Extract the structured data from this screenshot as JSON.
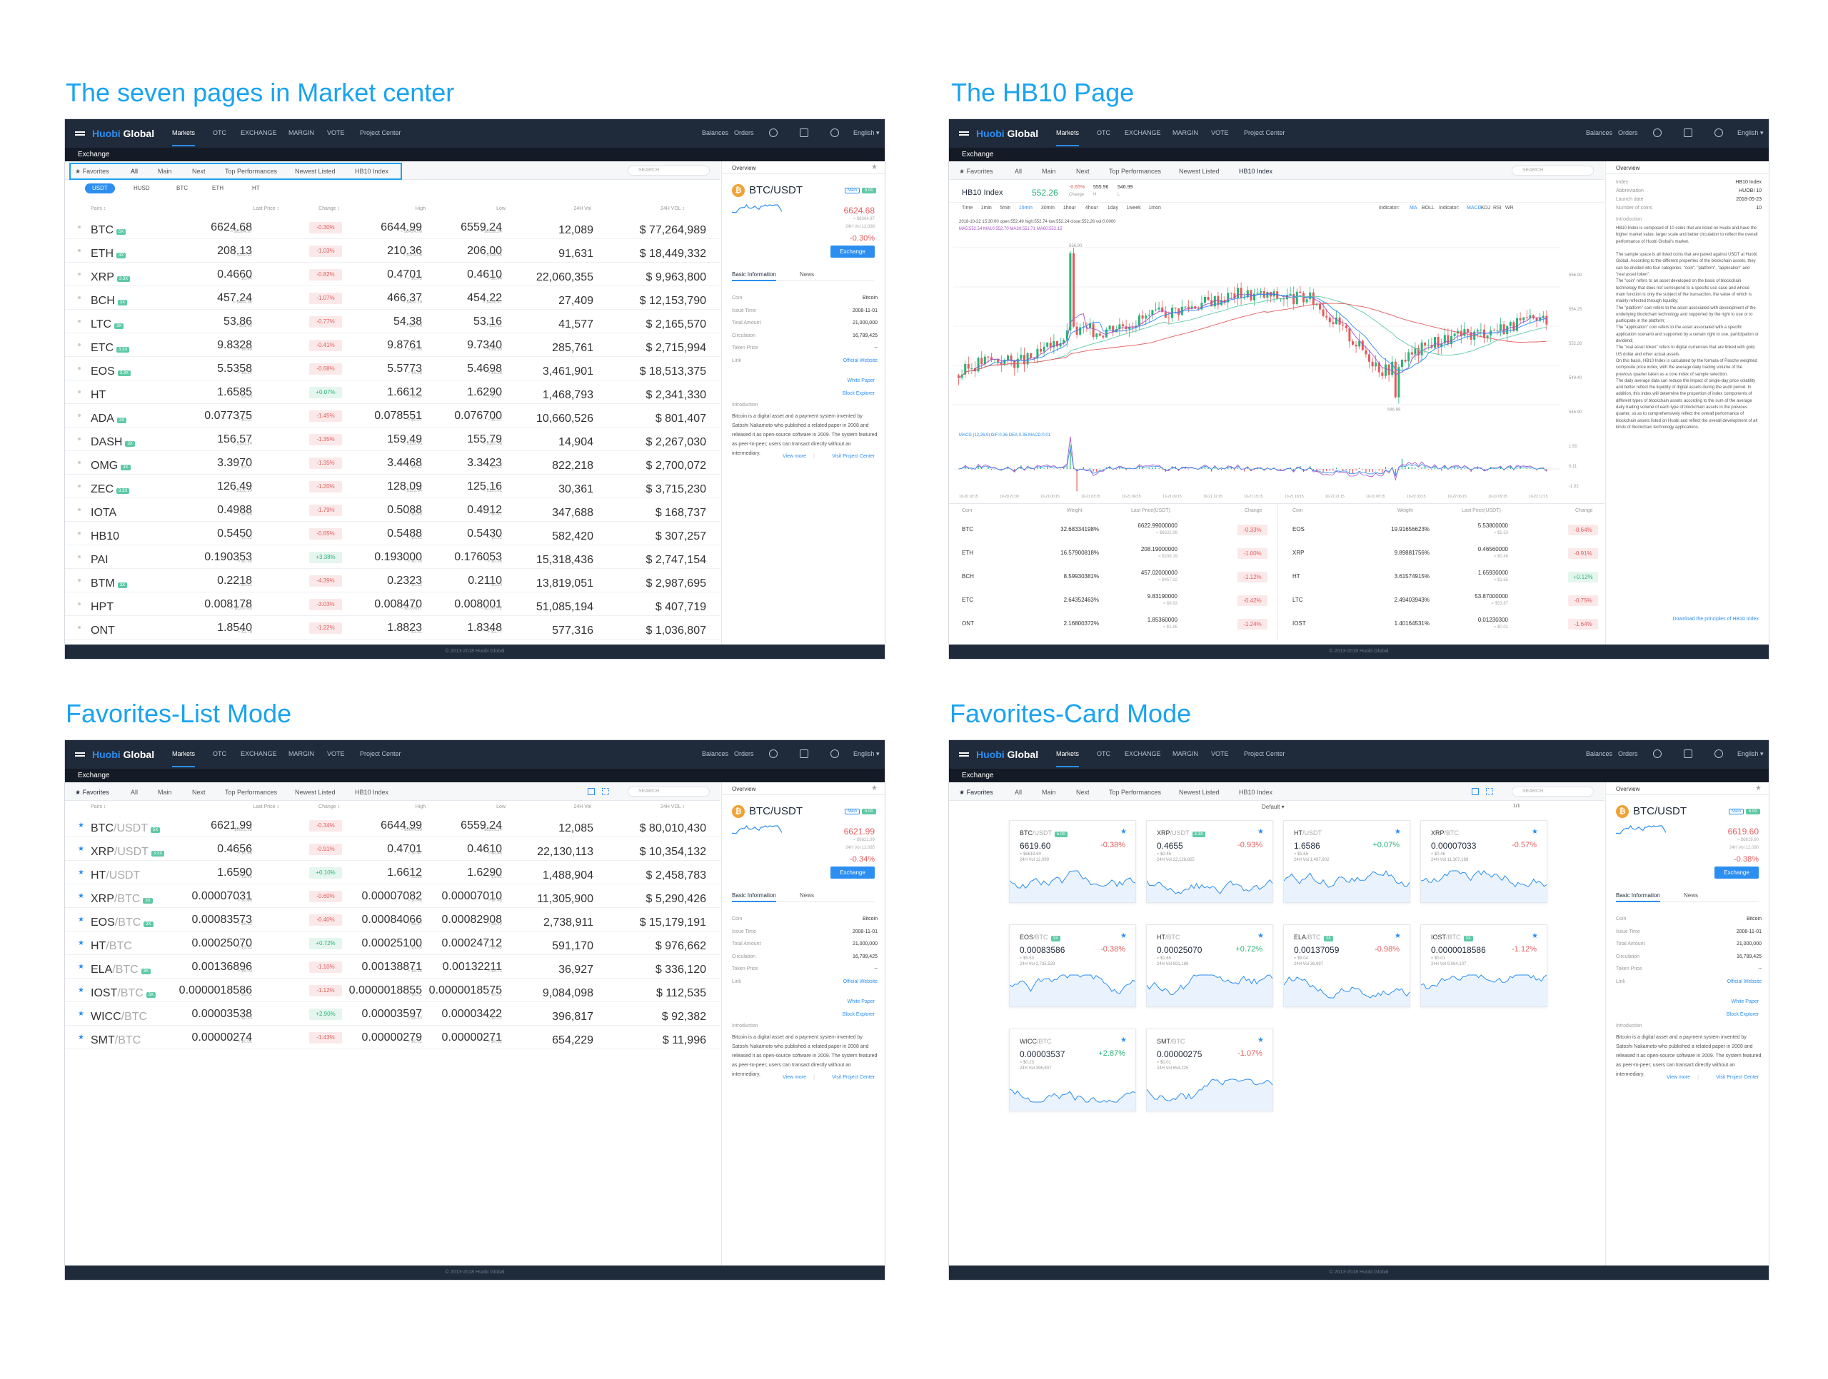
{
  "titles": {
    "s1": "The seven pages in Market center",
    "s2": "The HB10 Page",
    "s3": "Favorites-List Mode",
    "s4": "Favorites-Card Mode"
  },
  "nav": {
    "logo_a": "Huobi",
    "logo_b": " Global",
    "markets": "Markets",
    "otc": "OTC",
    "exchange": "EXCHANGE",
    "margin": "MARGIN",
    "vote": "VOTE",
    "project": "Project Center",
    "balances": "Balances",
    "orders": "Orders",
    "lang": "English ▾"
  },
  "subbar": "Exchange",
  "tabs": {
    "favorites": "★ Favorites",
    "all": "All",
    "main": "Main",
    "next": "Next",
    "top": "Top Performances",
    "newest": "Newest Listed",
    "hb10": "HB10 Index",
    "search": "SEARCH"
  },
  "quotes": [
    "USDT",
    "HUSD",
    "BTC",
    "ETH",
    "HT"
  ],
  "cols": {
    "pairs": "Pairs ↕",
    "last": "Last Price ↕",
    "change": "Change ↕",
    "high": "High",
    "low": "Low",
    "vol": "24H Vol",
    "volc": "24H VOL ↕"
  },
  "market_rows": [
    {
      "pair": "BTC",
      "mult": "5X",
      "last": "6624.68",
      "lsub": "≈ $6364.97",
      "chg": "-0.30%",
      "dir": "dn",
      "high": "6644.99",
      "hsub": "≈ $6414.06",
      "low": "6559.24",
      "lowsub": "≈ $6559.24",
      "vol": "12,089",
      "volc": "$ 77,264,989"
    },
    {
      "pair": "ETH",
      "mult": "3X",
      "last": "208.13",
      "lsub": "≈ $200.91",
      "chg": "-1.03%",
      "dir": "dn",
      "high": "210.36",
      "hsub": "≈ $203.06",
      "low": "206.00",
      "lowsub": "≈ $198.85",
      "vol": "91,631",
      "volc": "$ 18,449,332"
    },
    {
      "pair": "XRP",
      "mult": "3.3X",
      "last": "0.4660",
      "lsub": "≈ $0.44",
      "chg": "-0.82%",
      "dir": "dn",
      "high": "0.4701",
      "hsub": "≈ $0.45",
      "low": "0.4610",
      "lowsub": "≈ $0.44",
      "vol": "22,060,355",
      "volc": "$ 9,963,800"
    },
    {
      "pair": "BCH",
      "mult": "3X",
      "last": "457.24",
      "lsub": "≈ $441.38",
      "chg": "-1.07%",
      "dir": "dn",
      "high": "466.37",
      "hsub": "≈ $450.19",
      "low": "454.22",
      "lowsub": "≈ $438.47",
      "vol": "27,409",
      "volc": "$ 12,153,790"
    },
    {
      "pair": "LTC",
      "mult": "3X",
      "last": "53.86",
      "lsub": "≈ $51.99",
      "chg": "-0.77%",
      "dir": "dn",
      "high": "54.38",
      "hsub": "≈ $52.49",
      "low": "53.16",
      "lowsub": "≈ $51.31",
      "vol": "41,577",
      "volc": "$ 2,165,570"
    },
    {
      "pair": "ETC",
      "mult": "3.3X",
      "last": "9.8328",
      "lsub": "≈ $9.49",
      "chg": "-0.41%",
      "dir": "dn",
      "high": "9.8761",
      "hsub": "≈ $9.53",
      "low": "9.7340",
      "lowsub": "≈ $9.39",
      "vol": "285,761",
      "volc": "$ 2,715,994"
    },
    {
      "pair": "EOS",
      "mult": "3.3X",
      "last": "5.5358",
      "lsub": "≈ $5.34",
      "chg": "-0.68%",
      "dir": "dn",
      "high": "5.5773",
      "hsub": "≈ $5.38",
      "low": "5.4698",
      "lowsub": "≈ $5.28",
      "vol": "3,461,901",
      "volc": "$ 18,513,375"
    },
    {
      "pair": "HT",
      "mult": "",
      "last": "1.6585",
      "lsub": "≈ $1.60",
      "chg": "+0.07%",
      "dir": "up",
      "high": "1.6612",
      "hsub": "≈ $1.60",
      "low": "1.6290",
      "lowsub": "≈ $1.57",
      "vol": "1,468,793",
      "volc": "$ 2,341,330"
    },
    {
      "pair": "ADA",
      "mult": "3X",
      "last": "0.077375",
      "lsub": "≈ $0.07",
      "chg": "-1.45%",
      "dir": "dn",
      "high": "0.078551",
      "hsub": "≈ $0.07",
      "low": "0.076700",
      "lowsub": "≈ $0.07",
      "vol": "10,660,526",
      "volc": "$ 801,407"
    },
    {
      "pair": "DASH",
      "mult": "3X",
      "last": "156.57",
      "lsub": "≈ $151.14",
      "chg": "-1.35%",
      "dir": "dn",
      "high": "159.49",
      "hsub": "≈ $153.95",
      "low": "155.79",
      "lowsub": "≈ $150.38",
      "vol": "14,904",
      "volc": "$ 2,267,030"
    },
    {
      "pair": "OMG",
      "mult": "3X",
      "last": "3.3970",
      "lsub": "≈ $3.27",
      "chg": "-1.35%",
      "dir": "dn",
      "high": "3.4468",
      "hsub": "≈ $3.32",
      "low": "3.3423",
      "lowsub": "≈ $3.22",
      "vol": "822,218",
      "volc": "$ 2,700,072"
    },
    {
      "pair": "ZEC",
      "mult": "3.3X",
      "last": "126.49",
      "lsub": "≈ $122.10",
      "chg": "-1.20%",
      "dir": "dn",
      "high": "128.09",
      "hsub": "≈ $123.64",
      "low": "125.16",
      "lowsub": "≈ $120.81",
      "vol": "30,361",
      "volc": "$ 3,715,230"
    },
    {
      "pair": "IOTA",
      "mult": "",
      "last": "0.4988",
      "lsub": "≈ $0.48",
      "chg": "-1.79%",
      "dir": "dn",
      "high": "0.5088",
      "hsub": "≈ $0.49",
      "low": "0.4912",
      "lowsub": "≈ $0.47",
      "vol": "347,688",
      "volc": "$ 168,737"
    },
    {
      "pair": "HB10",
      "mult": "",
      "last": "0.5450",
      "lsub": "≈ $0.52",
      "chg": "-0.65%",
      "dir": "dn",
      "high": "0.5488",
      "hsub": "≈ $0.52",
      "low": "0.5430",
      "lowsub": "≈ $0.52",
      "vol": "582,420",
      "volc": "$ 307,257"
    },
    {
      "pair": "PAI",
      "mult": "",
      "last": "0.190353",
      "lsub": "≈ $0.18",
      "chg": "+3.38%",
      "dir": "up",
      "high": "0.193000",
      "hsub": "≈ $0.18",
      "low": "0.176053",
      "lowsub": "≈ $0.16",
      "vol": "15,318,436",
      "volc": "$ 2,747,154"
    },
    {
      "pair": "BTM",
      "mult": "3X",
      "last": "0.2218",
      "lsub": "≈ $0.21",
      "chg": "-4.39%",
      "dir": "dn",
      "high": "0.2323",
      "hsub": "≈ $0.22",
      "low": "0.2110",
      "lowsub": "≈ $0.20",
      "vol": "13,819,051",
      "volc": "$ 2,987,695"
    },
    {
      "pair": "HPT",
      "mult": "",
      "last": "0.008178",
      "lsub": "≈ $0.00789",
      "chg": "-3.03%",
      "dir": "dn",
      "high": "0.008470",
      "hsub": "≈ $0.00817",
      "low": "0.008001",
      "lowsub": "≈ $0.00772",
      "vol": "51,085,194",
      "volc": "$ 407,719"
    },
    {
      "pair": "ONT",
      "mult": "",
      "last": "1.8540",
      "lsub": "≈ $1.78",
      "chg": "-1.22%",
      "dir": "dn",
      "high": "1.8823",
      "hsub": "≈ $1.81",
      "low": "1.8348",
      "lowsub": "≈ $1.77",
      "vol": "577,316",
      "volc": "$ 1,036,807"
    }
  ],
  "fav_rows": [
    {
      "pair": "BTC",
      "quote": "/USDT",
      "mult": "5X",
      "last": "6621.99",
      "lsub": "≈ $6621.99",
      "chg": "-0.34%",
      "dir": "dn",
      "high": "6644.99",
      "hsub": "≈ $6644.99",
      "low": "6559.24",
      "lowsub": "≈ $6559.24",
      "vol": "12,085",
      "volc": "$ 80,010,430"
    },
    {
      "pair": "XRP",
      "quote": "/USDT",
      "mult": "3.3X",
      "last": "0.4656",
      "lsub": "≈ $0.46",
      "chg": "-0.91%",
      "dir": "dn",
      "high": "0.4701",
      "hsub": "≈ $0.47",
      "low": "0.4610",
      "lowsub": "≈ $0.46",
      "vol": "22,130,113",
      "volc": "$ 10,354,132"
    },
    {
      "pair": "HT",
      "quote": "/USDT",
      "mult": "",
      "last": "1.6590",
      "lsub": "≈ $1.65",
      "chg": "+0.10%",
      "dir": "up",
      "high": "1.6612",
      "hsub": "≈ $1.66",
      "low": "1.6290",
      "lowsub": "≈ $1.62",
      "vol": "1,488,904",
      "volc": "$ 2,458,783"
    },
    {
      "pair": "XRP",
      "quote": "/BTC",
      "mult": "3X",
      "last": "0.00007031",
      "lsub": "≈ $0.46",
      "chg": "-0.60%",
      "dir": "dn",
      "high": "0.00007082",
      "hsub": "≈ $0.46",
      "low": "0.00007010",
      "lowsub": "≈ $0.46",
      "vol": "11,305,900",
      "volc": "$ 5,290,426"
    },
    {
      "pair": "EOS",
      "quote": "/BTC",
      "mult": "3X",
      "last": "0.00083573",
      "lsub": "≈ $5.53",
      "chg": "-0.40%",
      "dir": "dn",
      "high": "0.00084066",
      "hsub": "≈ $5.57",
      "low": "0.00082908",
      "lowsub": "≈ $5.49",
      "vol": "2,738,911",
      "volc": "$ 15,179,191"
    },
    {
      "pair": "HT",
      "quote": "/BTC",
      "mult": "",
      "last": "0.00025070",
      "lsub": "≈ $1.65",
      "chg": "+0.72%",
      "dir": "up",
      "high": "0.00025100",
      "hsub": "≈ $1.66",
      "low": "0.00024712",
      "lowsub": "≈ $1.63",
      "vol": "591,170",
      "volc": "$ 976,662"
    },
    {
      "pair": "ELA",
      "quote": "/BTC",
      "mult": "3X",
      "last": "0.00136896",
      "lsub": "≈ $9.03",
      "chg": "-1.10%",
      "dir": "dn",
      "high": "0.00138871",
      "hsub": "≈ $9.16",
      "low": "0.00132211",
      "lowsub": "≈ $8.72",
      "vol": "36,927",
      "volc": "$ 336,120"
    },
    {
      "pair": "IOST",
      "quote": "/BTC",
      "mult": "3X",
      "last": "0.0000018586",
      "lsub": "≈ $0.01",
      "chg": "-1.12%",
      "dir": "dn",
      "high": "0.0000018855",
      "hsub": "≈ $0.01",
      "low": "0.0000018575",
      "lowsub": "≈ $0.01",
      "vol": "9,084,098",
      "volc": "$ 112,535"
    },
    {
      "pair": "WICC",
      "quote": "/BTC",
      "mult": "",
      "last": "0.00003538",
      "lsub": "≈ $0.23",
      "chg": "+2.90%",
      "dir": "up",
      "high": "0.00003597",
      "hsub": "≈ $0.23",
      "low": "0.00003422",
      "lowsub": "≈ $0.22",
      "vol": "396,817",
      "volc": "$ 92,382"
    },
    {
      "pair": "SMT",
      "quote": "/BTC",
      "mult": "",
      "last": "0.00000274",
      "lsub": "≈ $0.01",
      "chg": "-1.43%",
      "dir": "dn",
      "high": "0.00000279",
      "hsub": "≈ $0.01",
      "low": "0.00000271",
      "lowsub": "≈ $0.01",
      "vol": "654,229",
      "volc": "$ 11,996"
    }
  ],
  "overview": {
    "title": "Overview",
    "pair": "BTC/USDT",
    "badge_main": "Main",
    "badge_mult": "5.00",
    "price1": "6624.68",
    "price2": "6621.99",
    "sub1a": "≈ $6364.97",
    "sub1b": "24H Vol 12,089",
    "sub2a": "≈ $6621.99",
    "sub2b": "24H Vol 12,085",
    "chg1": "-0.30%",
    "chg2": "-0.34%",
    "exchange_btn": "Exchange",
    "tab_basic": "Basic Information",
    "tab_news": "News",
    "rows": [
      {
        "k": "Coin",
        "v": "Bitcoin"
      },
      {
        "k": "Issue Time",
        "v": "2008-11-01"
      },
      {
        "k": "Total Amount",
        "v": "21,000,000"
      },
      {
        "k": "Circulation",
        "v": "16,789,425"
      },
      {
        "k": "Token Price",
        "v": "--"
      },
      {
        "k": "Link",
        "v": "Official Website"
      }
    ],
    "links": [
      "White Paper",
      "Block Explorer"
    ],
    "intro_h": "Introduction",
    "intro": "Bitcoin is a digital asset and a payment system invented by Satoshi Nakamoto who published a related paper in 2008 and released it as open-source software in 2009. The system featured as peer-to-peer; users can transact directly without an intermediary.",
    "view_more": "View more",
    "visit": "Visit Project Center"
  },
  "hb10": {
    "name": "HB10 Index",
    "price": "552.26",
    "chg": "-0.65%",
    "chg_l": "Change",
    "high": "555.96",
    "high_l": "H",
    "low": "546.99",
    "low_l": "L",
    "times": [
      "Time",
      "1min",
      "5min",
      "15min",
      "30min",
      "1hour",
      "4hour",
      "1day",
      "1week",
      "1mon"
    ],
    "ind": [
      "Indicator:",
      "MA",
      "BOLL",
      "Indicator:",
      "MACD",
      "KDJ",
      "RSI",
      "WR"
    ],
    "info1": "2018-10-22 15:30:00  open:552.49  high:552.74  low:552.24  close:552.26  vol:0.0000",
    "info2": "MA5:552.54  MA10:552.70  MA30:551.71  MA60:552.15",
    "macd": "MACD (12,26,9)  DIF:0.36  DEA:0.35  MACD:0.01",
    "axis": [
      "556.90",
      "554.25",
      "552.26",
      "549.40",
      "546.90"
    ],
    "macd_axis": [
      "1.50",
      "0.11",
      "-1.02"
    ],
    "xlabels": [
      "10-20 18:15",
      "10-20 21:00",
      "10-21 00:15",
      "10-21 03:15",
      "10-21 06:15",
      "10-21 09:15",
      "10-21 12:15",
      "10-21 15:15",
      "10-21 18:15",
      "10-21 21:15",
      "10-22 00:15",
      "10-22 03:15",
      "10-22 06:15",
      "10-22 09:15",
      "10-22 12:15"
    ],
    "peak": "556.90",
    "trough": "546.99",
    "cols": {
      "coin": "Coin",
      "weight": "Weight",
      "last": "Last Price(USDT)",
      "change": "Change"
    },
    "left": [
      {
        "c": "BTC",
        "w": "32.68334198%",
        "p": "6622.99000000",
        "ps": "≈ $6622.99",
        "ch": "-0.33%",
        "d": "dn"
      },
      {
        "c": "ETH",
        "w": "16.57900818%",
        "p": "208.19000000",
        "ps": "≈ $208.19",
        "ch": "-1.00%",
        "d": "dn"
      },
      {
        "c": "BCH",
        "w": "8.59930381%",
        "p": "457.02000000",
        "ps": "≈ $457.02",
        "ch": "-1.12%",
        "d": "dn"
      },
      {
        "c": "ETC",
        "w": "2.64352463%",
        "p": "9.83190000",
        "ps": "≈ $9.83",
        "ch": "-0.42%",
        "d": "dn"
      },
      {
        "c": "ONT",
        "w": "2.16800372%",
        "p": "1.85360000",
        "ps": "≈ $1.85",
        "ch": "-1.24%",
        "d": "dn"
      }
    ],
    "right": [
      {
        "c": "EOS",
        "w": "19.91656623%",
        "p": "5.53800000",
        "ps": "≈ $5.53",
        "ch": "-0.64%",
        "d": "dn"
      },
      {
        "c": "XRP",
        "w": "9.89881756%",
        "p": "0.46560000",
        "ps": "≈ $0.46",
        "ch": "-0.91%",
        "d": "dn"
      },
      {
        "c": "HT",
        "w": "3.61574915%",
        "p": "1.65930000",
        "ps": "≈ $1.65",
        "ch": "+0.12%",
        "d": "up"
      },
      {
        "c": "LTC",
        "w": "2.49403943%",
        "p": "53.87000000",
        "ps": "≈ $53.87",
        "ch": "-0.75%",
        "d": "dn"
      },
      {
        "c": "IOST",
        "w": "1.40164531%",
        "p": "0.01230300",
        "ps": "≈ $0.01",
        "ch": "-1.64%",
        "d": "dn"
      }
    ],
    "side": [
      {
        "k": "Index",
        "v": "HB10 Index"
      },
      {
        "k": "Abbreviation",
        "v": "HUOBI 10"
      },
      {
        "k": "Launch date",
        "v": "2018-05-23"
      },
      {
        "k": "Number of coins",
        "v": "10"
      }
    ],
    "intro_h": "Introduction",
    "intro": "HB10 Index is composed of 10 coins that are listed on Huobi and have the higher market value, larger scale and better circulation to reflect the overall performance of Huobi Global's market.\n\nThe sample space is all listed coins that are paired against USDT at Huobi Global. According to the different properties of the blockchain assets, they can be divided into four categories: \"coin\", \"platform\", \"application\" and \"real asset token\".\nThe \"coin\" refers to an asset developed on the basis of blockchain technology that does not correspond to a specific use case and whose main function is only the subject of the transaction, the value of which is mainly reflected through liquidity;\nThe \"platform\" coin refers to the asset associated with development of the underlying blockchain technology and supported by the right to use or to participate in the platform;\nThe \"application\" coin refers to the asset associated with a specific application scenario and supported by a certain right to use, participation or dividend;\nThe \"real asset token\" refers to digital currencies that are linked with gold, US dollar and other actual assets.\nOn this basis, HB10 Index is calculated by the formula of Pasche weighted composite price index, with the average daily trading volume of the previous quarter taken as a core index of sample selection.\nThe daily average data can reduce the impact of single-day price volatility and better reflect the liquidity of digital assets during the audit period. In addition, this index will determine the proportion of index components of different types of blockchain assets according to the sum of the average daily trading volume of each type of blockchain assets in the previous quarter, so as to comprehensively reflect the overall performance of blockchain assets listed on Huobi and reflect the overall development of all kinds of blockchain technology applications.",
    "download": "Download the principles of HB10 Index"
  },
  "card_mode": {
    "sort": "Default ▾",
    "page": "1/1"
  },
  "cards": [
    {
      "pair": "BTC",
      "quote": "/USDT",
      "mult": "5.00",
      "price": "6619.60",
      "chg": "-0.38%",
      "dir": "dn",
      "sub": "≈ $6619.60",
      "vol": "24H Vol 12,090"
    },
    {
      "pair": "XRP",
      "quote": "/USDT",
      "mult": "3.3X",
      "price": "0.4655",
      "chg": "-0.93%",
      "dir": "dn",
      "sub": "≈ $0.46",
      "vol": "24H Vol 22,128,825"
    },
    {
      "pair": "HT",
      "quote": "/USDT",
      "mult": "",
      "price": "1.6586",
      "chg": "+0.07%",
      "dir": "up",
      "sub": "≈ $1.65",
      "vol": "24H Vol 1,497,902"
    },
    {
      "pair": "XRP",
      "quote": "/BTC",
      "mult": "",
      "price": "0.00007033",
      "chg": "-0.57%",
      "dir": "dn",
      "sub": "≈ $0.46",
      "vol": "24H Vol 11,307,169"
    },
    {
      "pair": "EOS",
      "quote": "/BTC",
      "mult": "3X",
      "price": "0.00083586",
      "chg": "-0.38%",
      "dir": "dn",
      "sub": "≈ $5.53",
      "vol": "24H Vol 2,735,529"
    },
    {
      "pair": "HT",
      "quote": "/BTC",
      "mult": "",
      "price": "0.00025070",
      "chg": "+0.72%",
      "dir": "up",
      "sub": "≈ $1.65",
      "vol": "24H Vol 591,169"
    },
    {
      "pair": "ELA",
      "quote": "/BTC",
      "mult": "3X",
      "price": "0.00137059",
      "chg": "-0.98%",
      "dir": "dn",
      "sub": "≈ $9.04",
      "vol": "24H Vol 36,997"
    },
    {
      "pair": "IOST",
      "quote": "/BTC",
      "mult": "3X",
      "price": "0.0000018586",
      "chg": "-1.12%",
      "dir": "dn",
      "sub": "≈ $0.01",
      "vol": "24H Vol 9,084,107"
    },
    {
      "pair": "WICC",
      "quote": "/BTC",
      "mult": "",
      "price": "0.00003537",
      "chg": "+2.87%",
      "dir": "up",
      "sub": "≈ $0.23",
      "vol": "24H Vol 396,807"
    },
    {
      "pair": "SMT",
      "quote": "/BTC",
      "mult": "",
      "price": "0.00000275",
      "chg": "-1.07%",
      "dir": "dn",
      "sub": "≈ $0.01",
      "vol": "24H Vol 654,225"
    }
  ],
  "card_overview": {
    "price": "6619.60",
    "sub1": "≈ $6619.60",
    "sub2": "24H Vol 12,090",
    "chg": "-0.38%"
  },
  "footer": "© 2013-2018 Huobi Global",
  "colors": {
    "accent": "#2b8ef0",
    "down": "#e55b5b",
    "up": "#28b578",
    "nav": "#1f2a3a",
    "title": "#1aa3f0"
  },
  "icons": [
    "menu-icon",
    "search-icon",
    "speaker-icon",
    "gear-icon",
    "star-icon",
    "list-view-icon",
    "grid-view-icon",
    "bitcoin-icon"
  ]
}
